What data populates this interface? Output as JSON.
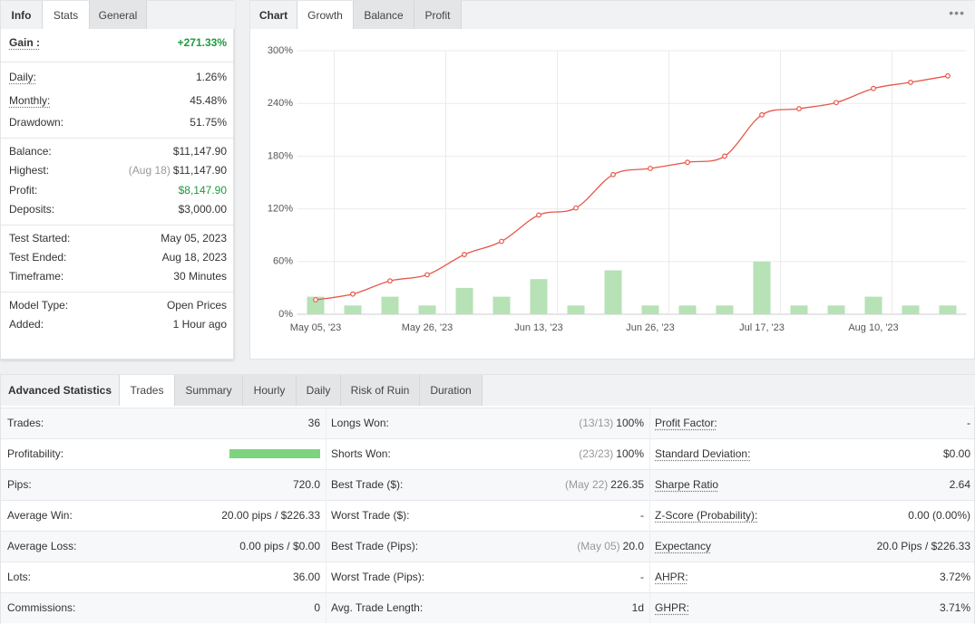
{
  "stats_panel": {
    "title": "Info",
    "tabs": [
      "Stats",
      "General"
    ],
    "active_tab": 0,
    "groups": [
      [
        {
          "label": "Gain :",
          "value": "+271.33%",
          "underline": true,
          "bold": true,
          "color": "#1a9c3c"
        }
      ],
      [
        {
          "label": "Daily:",
          "value": "1.26%",
          "underline": true
        },
        {
          "label": "Monthly:",
          "value": "45.48%",
          "underline": true
        },
        {
          "label": "Drawdown:",
          "value": "51.75%"
        }
      ],
      [
        {
          "label": "Balance:",
          "value": "$11,147.90"
        },
        {
          "label": "Highest:",
          "note": "(Aug 18)",
          "value": "$11,147.90"
        },
        {
          "label": "Profit:",
          "value": "$8,147.90",
          "color": "#1a9c3c"
        },
        {
          "label": "Deposits:",
          "value": "$3,000.00"
        }
      ],
      [
        {
          "label": "Test Started:",
          "value": "May 05, 2023"
        },
        {
          "label": "Test Ended:",
          "value": "Aug 18, 2023"
        },
        {
          "label": "Timeframe:",
          "value": "30 Minutes"
        }
      ],
      [
        {
          "label": "Model Type:",
          "value": "Open Prices"
        },
        {
          "label": "Added:",
          "value": "1 Hour ago"
        }
      ]
    ]
  },
  "chart_panel": {
    "title": "Chart",
    "tabs": [
      "Growth",
      "Balance",
      "Profit"
    ],
    "active_tab": 0
  },
  "chart_data": {
    "type": "line",
    "categories": [
      "May 05, '23",
      null,
      null,
      "May 26, '23",
      null,
      null,
      "Jun 13, '23",
      null,
      null,
      "Jun 26, '23",
      null,
      null,
      "Jul 17, '23",
      null,
      null,
      "Aug 10, '23",
      null,
      null
    ],
    "series": [
      {
        "type": "line",
        "color": "#e8574a",
        "values": [
          16.5,
          23,
          38,
          45,
          68,
          83,
          113,
          121,
          159,
          166,
          173,
          180,
          227,
          234,
          241,
          257,
          264,
          271.33
        ]
      },
      {
        "type": "bar",
        "color": "#b6e2b6",
        "values": [
          20,
          10,
          20,
          10,
          30,
          20,
          40,
          10,
          50,
          10,
          10,
          10,
          60,
          10,
          10,
          20,
          10,
          10
        ]
      }
    ],
    "ylim": [
      0,
      300
    ],
    "yticks": [
      {
        "value": 0,
        "label": "0%"
      },
      {
        "value": 60,
        "label": "60%"
      },
      {
        "value": 120,
        "label": "120%"
      },
      {
        "value": 180,
        "label": "180%"
      },
      {
        "value": 240,
        "label": "240%"
      },
      {
        "value": 300,
        "label": "300%"
      }
    ],
    "grid": true
  },
  "advanced": {
    "title": "Advanced Statistics",
    "tabs": [
      "Trades",
      "Summary",
      "Hourly",
      "Daily",
      "Risk of Ruin",
      "Duration"
    ],
    "active_tab": 0,
    "rows": [
      [
        {
          "label": "Trades:",
          "value": "36"
        },
        {
          "label": "Longs Won:",
          "note": "(13/13)",
          "value": "100%"
        },
        {
          "label": "Profit Factor:",
          "value": "-",
          "underline": true
        }
      ],
      [
        {
          "label": "Profitability:",
          "bar": {
            "value": 100,
            "xlim": [
              0,
              100
            ],
            "color": "#7ed47e"
          }
        },
        {
          "label": "Shorts Won:",
          "note": "(23/23)",
          "value": "100%"
        },
        {
          "label": "Standard Deviation:",
          "value": "$0.00",
          "underline": true
        }
      ],
      [
        {
          "label": "Pips:",
          "value": "720.0"
        },
        {
          "label": "Best Trade ($):",
          "note": "(May 22)",
          "value": "226.35"
        },
        {
          "label": "Sharpe Ratio",
          "value": "2.64",
          "underline": true
        }
      ],
      [
        {
          "label": "Average Win:",
          "value": "20.00 pips / $226.33"
        },
        {
          "label": "Worst Trade ($):",
          "value": "-"
        },
        {
          "label": "Z-Score (Probability):",
          "value": "0.00 (0.00%)",
          "underline": true
        }
      ],
      [
        {
          "label": "Average Loss:",
          "value": "0.00 pips / $0.00"
        },
        {
          "label": "Best Trade (Pips):",
          "note": "(May 05)",
          "value": "20.0"
        },
        {
          "label": "Expectancy",
          "value": "20.0 Pips / $226.33",
          "underline": true
        }
      ],
      [
        {
          "label": "Lots:",
          "value": "36.00"
        },
        {
          "label": "Worst Trade (Pips):",
          "value": "-"
        },
        {
          "label": "AHPR:",
          "value": "3.72%",
          "underline": true
        }
      ],
      [
        {
          "label": "Commissions:",
          "value": "0"
        },
        {
          "label": "Avg. Trade Length:",
          "value": "1d"
        },
        {
          "label": "GHPR:",
          "value": "3.71%",
          "underline": true
        }
      ]
    ]
  }
}
